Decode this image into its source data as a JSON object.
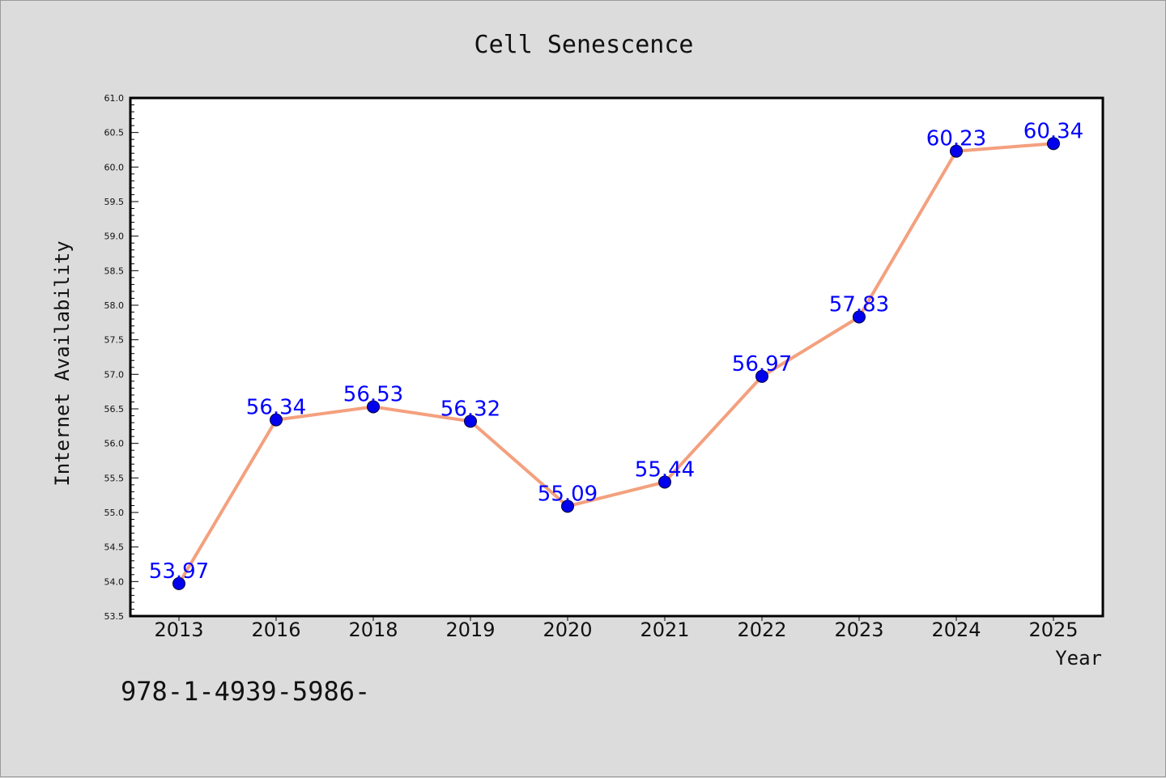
{
  "chart_data": {
    "type": "line",
    "title": "Cell Senescence",
    "xlabel": "Year",
    "ylabel": "Internet Availability",
    "categories": [
      "2013",
      "2016",
      "2018",
      "2019",
      "2020",
      "2021",
      "2022",
      "2023",
      "2024",
      "2025"
    ],
    "series": [
      {
        "values": [
          53.97,
          56.34,
          56.53,
          56.32,
          55.09,
          55.44,
          56.97,
          57.83,
          60.23,
          60.34
        ],
        "labels": [
          "53.97",
          "56.34",
          "56.53",
          "56.32",
          "55.09",
          "55.44",
          "56.97",
          "57.83",
          "60.23",
          "60.34"
        ],
        "line_color": "#f4a07e",
        "marker_color": "#0000ee",
        "label_color": "#0000ff"
      }
    ],
    "ylim": [
      53.5,
      61.0
    ],
    "yticks": [
      "53.5",
      "54.0",
      "54.5",
      "55.0",
      "55.5",
      "56.0",
      "56.5",
      "57.0",
      "57.5",
      "58.0",
      "58.5",
      "59.0",
      "59.5",
      "60.0",
      "60.5",
      "61.0"
    ],
    "grid": false,
    "legend": "none"
  },
  "annotation": "978-1-4939-5986-",
  "colors": {
    "background": "#dcdcdc",
    "plot_background": "#ffffff"
  }
}
